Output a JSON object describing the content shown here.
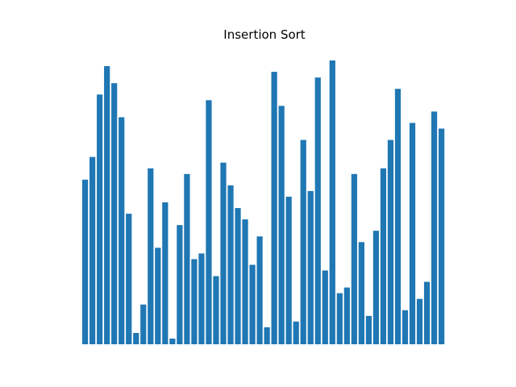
{
  "chart_data": {
    "type": "bar",
    "title": "Insertion Sort",
    "xlabel": "",
    "ylabel": "",
    "axes_visible": false,
    "grid": false,
    "ylim": [
      0,
      50
    ],
    "bar_color": "#1f77b4",
    "values": [
      29,
      33,
      44,
      49,
      46,
      40,
      23,
      2,
      7,
      31,
      17,
      25,
      1,
      21,
      30,
      15,
      16,
      43,
      12,
      32,
      28,
      24,
      22,
      14,
      19,
      3,
      48,
      42,
      26,
      4,
      36,
      27,
      47,
      13,
      50,
      9,
      10,
      30,
      18,
      5,
      20,
      31,
      36,
      45,
      6,
      39,
      8,
      11,
      41,
      38
    ]
  }
}
